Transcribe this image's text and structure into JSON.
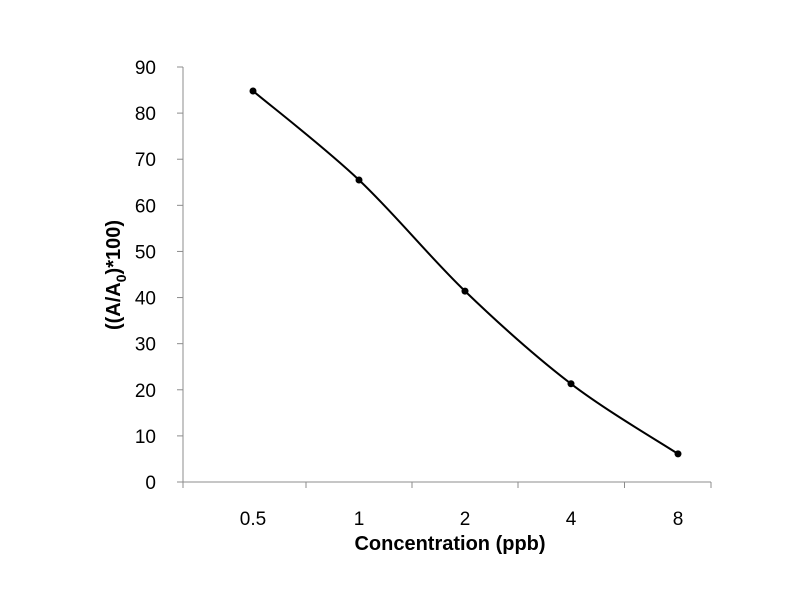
{
  "chart_data": {
    "type": "line",
    "title": "",
    "xlabel": "Concentration (ppb)",
    "ylabel": {
      "prefix": "((A/A",
      "subscript": "0",
      "suffix": ")*100)"
    },
    "x_scale": "log2",
    "categories": [
      "0.5",
      "1",
      "2",
      "4",
      "8"
    ],
    "x": [
      0.5,
      1,
      2,
      4,
      8
    ],
    "series": [
      {
        "values": [
          84.8,
          65.5,
          41.4,
          21.3,
          6.1
        ],
        "color": "#000000",
        "smooth": true,
        "markers": true
      }
    ],
    "ylim": [
      0,
      90
    ],
    "yticks": [
      0,
      10,
      20,
      30,
      40,
      50,
      60,
      70,
      80,
      90
    ],
    "grid": false,
    "legend": "none"
  }
}
